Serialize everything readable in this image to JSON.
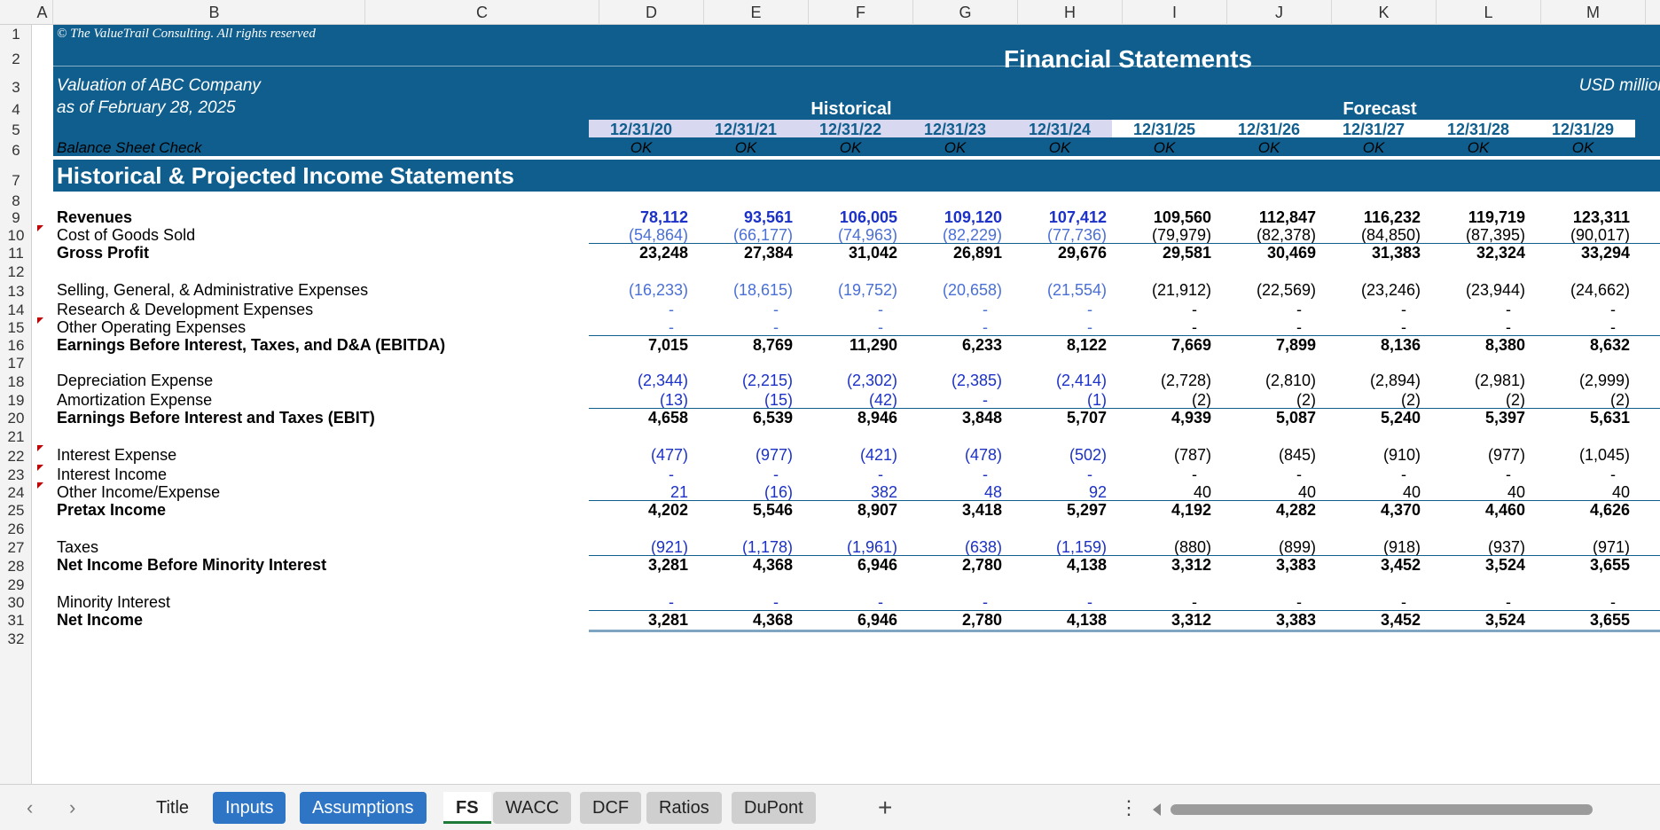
{
  "columns": [
    "A",
    "B",
    "C",
    "D",
    "E",
    "F",
    "G",
    "H",
    "I",
    "J",
    "K",
    "L",
    "M"
  ],
  "rows": [
    "1",
    "2",
    "3",
    "4",
    "5",
    "6",
    "7",
    "8",
    "9",
    "10",
    "11",
    "12",
    "13",
    "14",
    "15",
    "16",
    "17",
    "18",
    "19",
    "20",
    "21",
    "22",
    "23",
    "24",
    "25",
    "26",
    "27",
    "28",
    "29",
    "30",
    "31",
    "32"
  ],
  "header": {
    "copyright": "© The ValueTrail Consulting. All rights reserved",
    "title": "Financial Statements",
    "valuation": "Valuation of  ABC Company",
    "asof": "as of February 28, 2025",
    "currency": "USD million",
    "historical": "Historical",
    "forecast": "Forecast",
    "dates": [
      "12/31/20",
      "12/31/21",
      "12/31/22",
      "12/31/23",
      "12/31/24",
      "12/31/25",
      "12/31/26",
      "12/31/27",
      "12/31/28",
      "12/31/29"
    ],
    "bs_check_label": "Balance Sheet Check",
    "bs_check": [
      "OK",
      "OK",
      "OK",
      "OK",
      "OK",
      "OK",
      "OK",
      "OK",
      "OK",
      "OK"
    ]
  },
  "section_title": "Historical & Projected Income Statements",
  "lines": [
    {
      "row": 9,
      "label": "Revenues",
      "bold": true,
      "values": [
        "78,112",
        "93,561",
        "106,005",
        "109,120",
        "107,412",
        "109,560",
        "112,847",
        "116,232",
        "119,719",
        "123,311"
      ]
    },
    {
      "row": 10,
      "label": "Cost of Goods Sold",
      "bold": false,
      "comment": true,
      "values": [
        "(54,864)",
        "(66,177)",
        "(74,963)",
        "(82,229)",
        "(77,736)",
        "(79,979)",
        "(82,378)",
        "(84,850)",
        "(87,395)",
        "(90,017)"
      ]
    },
    {
      "row": 11,
      "label": "Gross Profit",
      "bold": true,
      "values": [
        "23,248",
        "27,384",
        "31,042",
        "26,891",
        "29,676",
        "29,581",
        "30,469",
        "31,383",
        "32,324",
        "33,294"
      ]
    },
    {
      "row": 13,
      "label": "Selling, General, & Administrative Expenses",
      "bold": false,
      "values": [
        "(16,233)",
        "(18,615)",
        "(19,752)",
        "(20,658)",
        "(21,554)",
        "(21,912)",
        "(22,569)",
        "(23,246)",
        "(23,944)",
        "(24,662)"
      ]
    },
    {
      "row": 14,
      "label": "Research & Development Expenses",
      "bold": false,
      "values": [
        "-",
        "-",
        "-",
        "-",
        "-",
        "-",
        "-",
        "-",
        "-",
        "-"
      ]
    },
    {
      "row": 15,
      "label": "Other Operating Expenses",
      "bold": false,
      "comment": true,
      "values": [
        "-",
        "-",
        "-",
        "-",
        "-",
        "-",
        "-",
        "-",
        "-",
        "-"
      ]
    },
    {
      "row": 16,
      "label": "Earnings Before Interest, Taxes, and D&A (EBITDA)",
      "bold": true,
      "values": [
        "7,015",
        "8,769",
        "11,290",
        "6,233",
        "8,122",
        "7,669",
        "7,899",
        "8,136",
        "8,380",
        "8,632"
      ]
    },
    {
      "row": 18,
      "label": "Depreciation Expense",
      "bold": false,
      "values": [
        "(2,344)",
        "(2,215)",
        "(2,302)",
        "(2,385)",
        "(2,414)",
        "(2,728)",
        "(2,810)",
        "(2,894)",
        "(2,981)",
        "(2,999)"
      ]
    },
    {
      "row": 19,
      "label": "Amortization Expense",
      "bold": false,
      "values": [
        "(13)",
        "(15)",
        "(42)",
        "-",
        "(1)",
        "(2)",
        "(2)",
        "(2)",
        "(2)",
        "(2)"
      ]
    },
    {
      "row": 20,
      "label": "Earnings Before Interest and Taxes (EBIT)",
      "bold": true,
      "values": [
        "4,658",
        "6,539",
        "8,946",
        "3,848",
        "5,707",
        "4,939",
        "5,087",
        "5,240",
        "5,397",
        "5,631"
      ]
    },
    {
      "row": 22,
      "label": "Interest Expense",
      "bold": false,
      "comment": true,
      "values": [
        "(477)",
        "(977)",
        "(421)",
        "(478)",
        "(502)",
        "(787)",
        "(845)",
        "(910)",
        "(977)",
        "(1,045)"
      ]
    },
    {
      "row": 23,
      "label": "Interest Income",
      "bold": false,
      "comment": true,
      "values": [
        "-",
        "-",
        "-",
        "-",
        "-",
        "-",
        "-",
        "-",
        "-",
        "-"
      ]
    },
    {
      "row": 24,
      "label": "Other Income/Expense",
      "bold": false,
      "comment": true,
      "values": [
        "21",
        "(16)",
        "382",
        "48",
        "92",
        "40",
        "40",
        "40",
        "40",
        "40"
      ]
    },
    {
      "row": 25,
      "label": "Pretax Income",
      "bold": true,
      "values": [
        "4,202",
        "5,546",
        "8,907",
        "3,418",
        "5,297",
        "4,192",
        "4,282",
        "4,370",
        "4,460",
        "4,626"
      ]
    },
    {
      "row": 27,
      "label": "Taxes",
      "bold": false,
      "values": [
        "(921)",
        "(1,178)",
        "(1,961)",
        "(638)",
        "(1,159)",
        "(880)",
        "(899)",
        "(918)",
        "(937)",
        "(971)"
      ]
    },
    {
      "row": 28,
      "label": "Net Income Before Minority Interest",
      "bold": true,
      "values": [
        "3,281",
        "4,368",
        "6,946",
        "2,780",
        "4,138",
        "3,312",
        "3,383",
        "3,452",
        "3,524",
        "3,655"
      ]
    },
    {
      "row": 30,
      "label": "Minority Interest",
      "bold": false,
      "values": [
        "-",
        "-",
        "-",
        "-",
        "-",
        "-",
        "-",
        "-",
        "-",
        "-"
      ]
    },
    {
      "row": 31,
      "label": "Net Income",
      "bold": true,
      "values": [
        "3,281",
        "4,368",
        "6,946",
        "2,780",
        "4,138",
        "3,312",
        "3,383",
        "3,452",
        "3,524",
        "3,655"
      ]
    }
  ],
  "tabs": {
    "items": [
      "Title",
      "Inputs",
      "Assumptions",
      "FS",
      "WACC",
      "DCF",
      "Ratios",
      "DuPont"
    ],
    "add": "+",
    "more": "⋮",
    "prev": "‹",
    "next": "›"
  },
  "colors": {
    "band": "#0f5e8d",
    "historical_input": "#1b31c8",
    "histshade": "#d8d8f0"
  }
}
